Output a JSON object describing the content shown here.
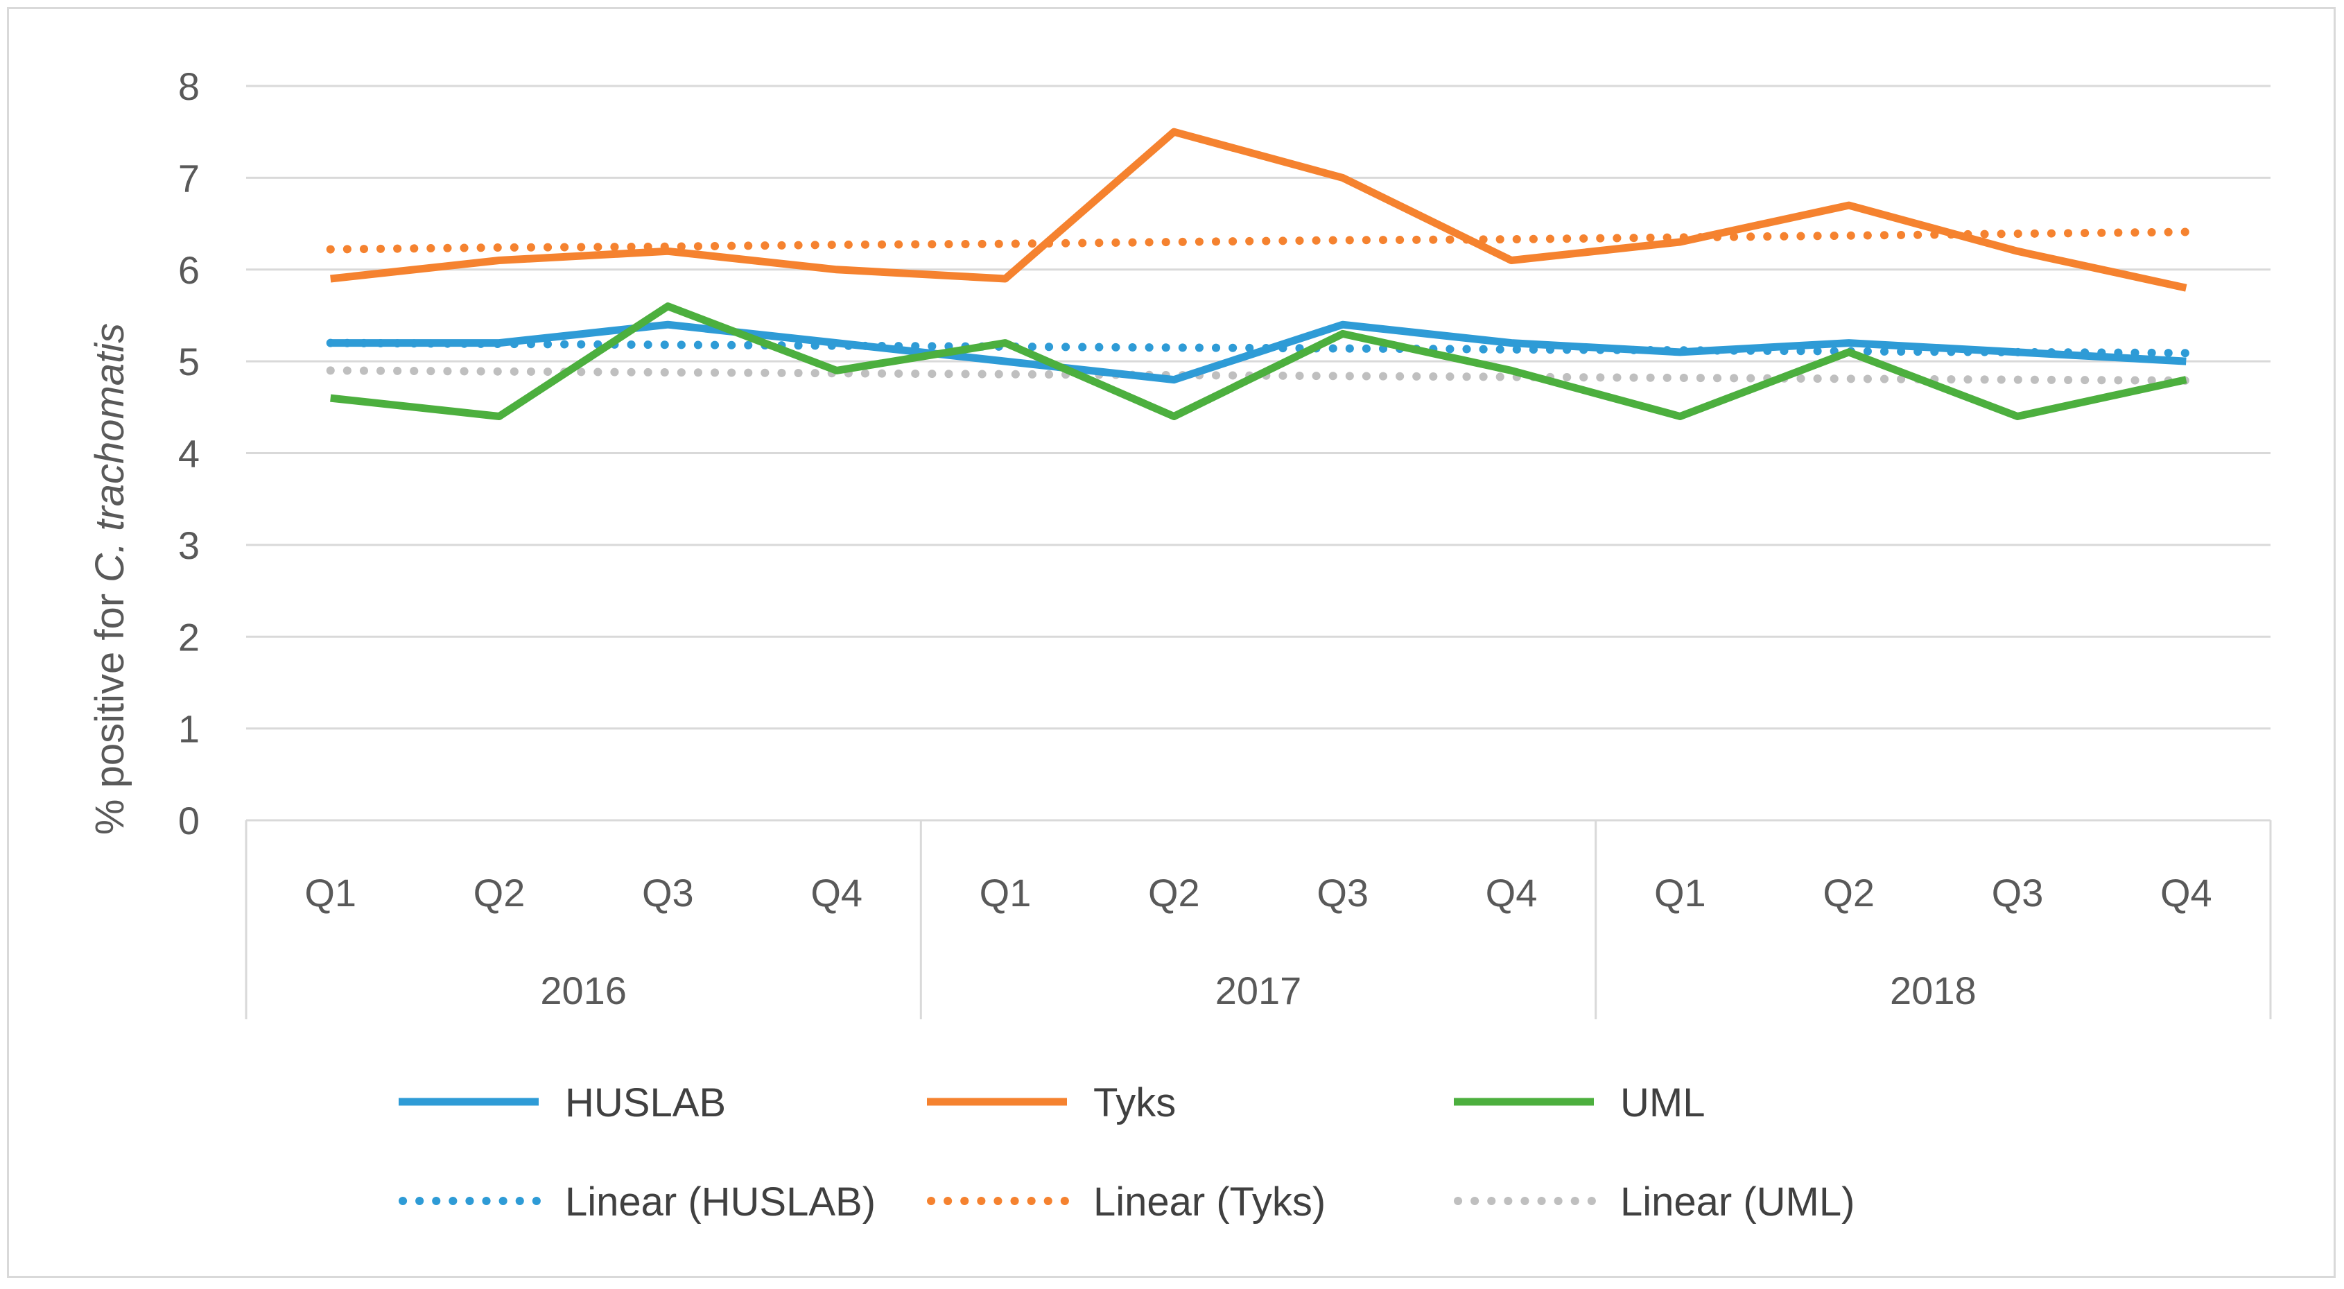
{
  "chart_data": {
    "type": "line",
    "title": "",
    "ylabel": "% positive for C. trachomatis",
    "ylabel_prefix": "% positive for ",
    "ylabel_italic": "C. trachomatis",
    "xlabel": "",
    "ylim": [
      0,
      8
    ],
    "yticks": [
      0,
      1,
      2,
      3,
      4,
      5,
      6,
      7,
      8
    ],
    "grid": true,
    "legend_position": "bottom",
    "categories": [
      "Q1",
      "Q2",
      "Q3",
      "Q4",
      "Q1",
      "Q2",
      "Q3",
      "Q4",
      "Q1",
      "Q2",
      "Q3",
      "Q4"
    ],
    "groups": [
      {
        "label": "2016",
        "count": 4
      },
      {
        "label": "2017",
        "count": 4
      },
      {
        "label": "2018",
        "count": 4
      }
    ],
    "series": [
      {
        "name": "HUSLAB",
        "color": "#2e9bd6",
        "style": "solid",
        "values": [
          5.2,
          5.2,
          5.4,
          5.2,
          5.0,
          4.8,
          5.4,
          5.2,
          5.1,
          5.2,
          5.1,
          5.0
        ]
      },
      {
        "name": "Tyks",
        "color": "#f5822f",
        "style": "solid",
        "values": [
          5.9,
          6.1,
          6.2,
          6.0,
          5.9,
          7.5,
          7.0,
          6.1,
          6.3,
          6.7,
          6.2,
          5.8
        ]
      },
      {
        "name": "UML",
        "color": "#4caf3e",
        "style": "solid",
        "values": [
          4.6,
          4.4,
          5.6,
          4.9,
          5.2,
          4.4,
          5.3,
          4.9,
          4.4,
          5.1,
          4.4,
          4.8
        ]
      },
      {
        "name": "Linear (HUSLAB)",
        "color": "#2e9bd6",
        "style": "dotted",
        "values": [
          5.2,
          5.19,
          5.18,
          5.17,
          5.16,
          5.15,
          5.14,
          5.13,
          5.12,
          5.11,
          5.1,
          5.09
        ]
      },
      {
        "name": "Linear (Tyks)",
        "color": "#f5822f",
        "style": "dotted",
        "values": [
          6.22,
          6.24,
          6.25,
          6.27,
          6.28,
          6.3,
          6.32,
          6.33,
          6.35,
          6.37,
          6.39,
          6.41
        ]
      },
      {
        "name": "Linear (UML)",
        "color": "#bfbfbf",
        "style": "dotted",
        "values": [
          4.9,
          4.89,
          4.88,
          4.87,
          4.86,
          4.85,
          4.84,
          4.83,
          4.82,
          4.81,
          4.8,
          4.79
        ]
      }
    ]
  }
}
